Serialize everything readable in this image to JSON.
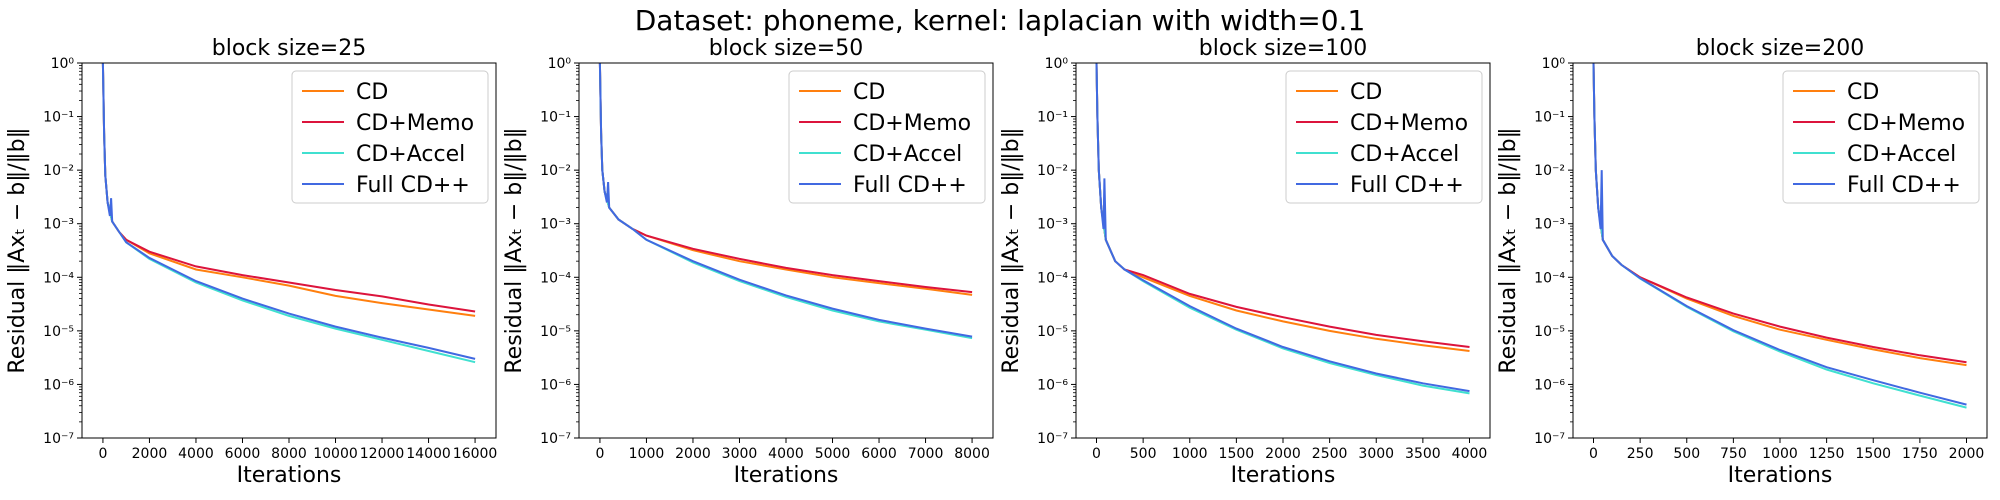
{
  "figure": {
    "title": "Dataset: phoneme, kernel: laplacian with width=0.1"
  },
  "chart_data": [
    {
      "type": "line",
      "title": "block size=25",
      "xlabel": "Iterations",
      "ylabel": "Residual ‖Axₜ − b‖/‖b‖",
      "yscale": "log",
      "ylim": [
        1e-07,
        1
      ],
      "xlim": [
        -900,
        16900
      ],
      "xticks": [
        0,
        2000,
        4000,
        6000,
        8000,
        10000,
        12000,
        14000,
        16000
      ],
      "yticks": [
        1e-07,
        1e-06,
        1e-05,
        0.0001,
        0.001,
        0.01,
        0.1,
        1
      ],
      "yticklabels": [
        "10⁻⁷",
        "10⁻⁶",
        "10⁻⁵",
        "10⁻⁴",
        "10⁻³",
        "10⁻²",
        "10⁻¹",
        "10⁰"
      ],
      "legend_position": "top-right",
      "grid": false,
      "series": [
        {
          "name": "CD",
          "color": "#ff7f0e",
          "x": [
            0,
            50,
            100,
            200,
            400,
            700,
            1000,
            2000,
            4000,
            6000,
            8000,
            10000,
            12000,
            14000,
            16000
          ],
          "y": [
            1,
            0.05,
            0.008,
            0.0025,
            0.0011,
            0.0007,
            0.0005,
            0.00028,
            0.00014,
            0.0001,
            7e-05,
            4.5e-05,
            3.3e-05,
            2.5e-05,
            1.9e-05
          ]
        },
        {
          "name": "CD+Memo",
          "color": "#dc143c",
          "x": [
            0,
            50,
            100,
            200,
            400,
            700,
            1000,
            2000,
            4000,
            6000,
            8000,
            10000,
            12000,
            14000,
            16000
          ],
          "y": [
            1,
            0.05,
            0.008,
            0.0025,
            0.0011,
            0.0007,
            0.0005,
            0.0003,
            0.00016,
            0.00011,
            8e-05,
            5.8e-05,
            4.4e-05,
            3.1e-05,
            2.3e-05
          ]
        },
        {
          "name": "CD+Accel",
          "color": "#40e0d0",
          "x": [
            0,
            50,
            100,
            200,
            400,
            700,
            1000,
            2000,
            4000,
            6000,
            8000,
            10000,
            12000,
            14000,
            16000
          ],
          "y": [
            1,
            0.05,
            0.008,
            0.0025,
            0.0011,
            0.0007,
            0.00045,
            0.00022,
            8e-05,
            3.7e-05,
            1.9e-05,
            1.1e-05,
            6.8e-06,
            4.2e-06,
            2.6e-06
          ]
        },
        {
          "name": "Full CD++",
          "color": "#4169e1",
          "x": [
            0,
            50,
            100,
            200,
            300,
            350,
            400,
            700,
            1000,
            2000,
            4000,
            6000,
            8000,
            10000,
            12000,
            14000,
            16000
          ],
          "y": [
            1,
            0.05,
            0.008,
            0.0025,
            0.0014,
            0.003,
            0.0011,
            0.0007,
            0.00045,
            0.00023,
            8.5e-05,
            4e-05,
            2.1e-05,
            1.2e-05,
            7.5e-06,
            4.8e-06,
            3e-06
          ]
        }
      ]
    },
    {
      "type": "line",
      "title": "block size=50",
      "xlabel": "Iterations",
      "ylabel": "Residual ‖Axₜ − b‖/‖b‖",
      "yscale": "log",
      "ylim": [
        1e-07,
        1
      ],
      "xlim": [
        -450,
        8450
      ],
      "xticks": [
        0,
        1000,
        2000,
        3000,
        4000,
        5000,
        6000,
        7000,
        8000
      ],
      "yticks": [
        1e-07,
        1e-06,
        1e-05,
        0.0001,
        0.001,
        0.01,
        0.1,
        1
      ],
      "yticklabels": [
        "10⁻⁷",
        "10⁻⁶",
        "10⁻⁵",
        "10⁻⁴",
        "10⁻³",
        "10⁻²",
        "10⁻¹",
        "10⁰"
      ],
      "legend_position": "top-right",
      "grid": false,
      "series": [
        {
          "name": "CD",
          "color": "#ff7f0e",
          "x": [
            0,
            25,
            50,
            100,
            200,
            400,
            700,
            1000,
            2000,
            3000,
            4000,
            5000,
            6000,
            7000,
            8000
          ],
          "y": [
            1,
            0.05,
            0.01,
            0.004,
            0.002,
            0.0012,
            0.0008,
            0.0006,
            0.00032,
            0.0002,
            0.00014,
            0.0001,
            7.8e-05,
            6.1e-05,
            4.7e-05
          ]
        },
        {
          "name": "CD+Memo",
          "color": "#dc143c",
          "x": [
            0,
            25,
            50,
            100,
            200,
            400,
            700,
            1000,
            2000,
            3000,
            4000,
            5000,
            6000,
            7000,
            8000
          ],
          "y": [
            1,
            0.05,
            0.01,
            0.004,
            0.002,
            0.0012,
            0.0008,
            0.0006,
            0.00034,
            0.00022,
            0.00015,
            0.00011,
            8.5e-05,
            6.6e-05,
            5.3e-05
          ]
        },
        {
          "name": "CD+Accel",
          "color": "#40e0d0",
          "x": [
            0,
            25,
            50,
            100,
            200,
            400,
            700,
            1000,
            2000,
            3000,
            4000,
            5000,
            6000,
            7000,
            8000
          ],
          "y": [
            1,
            0.05,
            0.01,
            0.004,
            0.002,
            0.0012,
            0.0008,
            0.0005,
            0.00019,
            8.5e-05,
            4.3e-05,
            2.4e-05,
            1.5e-05,
            1.05e-05,
            7.3e-06
          ]
        },
        {
          "name": "Full CD++",
          "color": "#4169e1",
          "x": [
            0,
            25,
            50,
            100,
            150,
            175,
            200,
            400,
            700,
            1000,
            2000,
            3000,
            4000,
            5000,
            6000,
            7000,
            8000
          ],
          "y": [
            1,
            0.05,
            0.01,
            0.004,
            0.0025,
            0.006,
            0.002,
            0.0012,
            0.0008,
            0.0005,
            0.0002,
            9e-05,
            4.6e-05,
            2.6e-05,
            1.6e-05,
            1.1e-05,
            7.8e-06
          ]
        }
      ]
    },
    {
      "type": "line",
      "title": "block size=100",
      "xlabel": "Iterations",
      "ylabel": "Residual ‖Axₜ − b‖/‖b‖",
      "yscale": "log",
      "ylim": [
        1e-07,
        1
      ],
      "xlim": [
        -220,
        4220
      ],
      "xticks": [
        0,
        500,
        1000,
        1500,
        2000,
        2500,
        3000,
        3500,
        4000
      ],
      "yticks": [
        1e-07,
        1e-06,
        1e-05,
        0.0001,
        0.001,
        0.01,
        0.1,
        1
      ],
      "yticklabels": [
        "10⁻⁷",
        "10⁻⁶",
        "10⁻⁵",
        "10⁻⁴",
        "10⁻³",
        "10⁻²",
        "10⁻¹",
        "10⁰"
      ],
      "legend_position": "top-right",
      "grid": false,
      "series": [
        {
          "name": "CD",
          "color": "#ff7f0e",
          "x": [
            0,
            10,
            25,
            50,
            100,
            200,
            300,
            500,
            1000,
            1500,
            2000,
            2500,
            3000,
            3500,
            4000
          ],
          "y": [
            1,
            0.1,
            0.01,
            0.002,
            0.0005,
            0.0002,
            0.00014,
            0.0001,
            4.5e-05,
            2.4e-05,
            1.5e-05,
            1e-05,
            7.1e-06,
            5.4e-06,
            4.2e-06
          ]
        },
        {
          "name": "CD+Memo",
          "color": "#dc143c",
          "x": [
            0,
            10,
            25,
            50,
            100,
            200,
            300,
            500,
            1000,
            1500,
            2000,
            2500,
            3000,
            3500,
            4000
          ],
          "y": [
            1,
            0.1,
            0.01,
            0.002,
            0.0005,
            0.0002,
            0.00014,
            0.00011,
            4.9e-05,
            2.8e-05,
            1.8e-05,
            1.2e-05,
            8.4e-06,
            6.4e-06,
            5e-06
          ]
        },
        {
          "name": "CD+Accel",
          "color": "#40e0d0",
          "x": [
            0,
            10,
            25,
            50,
            100,
            200,
            300,
            500,
            1000,
            1500,
            2000,
            2500,
            3000,
            3500,
            4000
          ],
          "y": [
            1,
            0.1,
            0.01,
            0.002,
            0.0005,
            0.0002,
            0.00014,
            8.5e-05,
            2.7e-05,
            1.05e-05,
            4.7e-06,
            2.5e-06,
            1.5e-06,
            9.5e-07,
            6.8e-07
          ]
        },
        {
          "name": "Full CD++",
          "color": "#4169e1",
          "x": [
            0,
            10,
            25,
            50,
            75,
            85,
            100,
            200,
            300,
            500,
            1000,
            1500,
            2000,
            2500,
            3000,
            3500,
            4000
          ],
          "y": [
            1,
            0.1,
            0.01,
            0.002,
            0.0008,
            0.007,
            0.0005,
            0.0002,
            0.00014,
            8.8e-05,
            2.9e-05,
            1.1e-05,
            5e-06,
            2.7e-06,
            1.6e-06,
            1.05e-06,
            7.5e-07
          ]
        }
      ]
    },
    {
      "type": "line",
      "title": "block size=200",
      "xlabel": "Iterations",
      "ylabel": "Residual ‖Axₜ − b‖/‖b‖",
      "yscale": "log",
      "ylim": [
        1e-07,
        1
      ],
      "xlim": [
        -110,
        2110
      ],
      "xticks": [
        0,
        250,
        500,
        750,
        1000,
        1250,
        1500,
        1750,
        2000
      ],
      "yticks": [
        1e-07,
        1e-06,
        1e-05,
        0.0001,
        0.001,
        0.01,
        0.1,
        1
      ],
      "yticklabels": [
        "10⁻⁷",
        "10⁻⁶",
        "10⁻⁵",
        "10⁻⁴",
        "10⁻³",
        "10⁻²",
        "10⁻¹",
        "10⁰"
      ],
      "legend_position": "top-right",
      "grid": false,
      "series": [
        {
          "name": "CD",
          "color": "#ff7f0e",
          "x": [
            0,
            5,
            12,
            25,
            50,
            100,
            150,
            250,
            500,
            750,
            1000,
            1250,
            1500,
            1750,
            2000
          ],
          "y": [
            1,
            0.1,
            0.01,
            0.002,
            0.0005,
            0.00025,
            0.00017,
            0.0001,
            4e-05,
            1.9e-05,
            1.05e-05,
            6.8e-06,
            4.5e-06,
            3.1e-06,
            2.3e-06
          ]
        },
        {
          "name": "CD+Memo",
          "color": "#dc143c",
          "x": [
            0,
            5,
            12,
            25,
            50,
            100,
            150,
            250,
            500,
            750,
            1000,
            1250,
            1500,
            1750,
            2000
          ],
          "y": [
            1,
            0.1,
            0.01,
            0.002,
            0.0005,
            0.00025,
            0.00017,
            0.0001,
            4.2e-05,
            2.1e-05,
            1.2e-05,
            7.5e-06,
            5e-06,
            3.5e-06,
            2.6e-06
          ]
        },
        {
          "name": "CD+Accel",
          "color": "#40e0d0",
          "x": [
            0,
            5,
            12,
            25,
            50,
            100,
            150,
            250,
            500,
            750,
            1000,
            1250,
            1500,
            1750,
            2000
          ],
          "y": [
            1,
            0.1,
            0.01,
            0.002,
            0.0005,
            0.00025,
            0.00017,
            9.5e-05,
            2.8e-05,
            9.8e-06,
            4.1e-06,
            1.9e-06,
            1.05e-06,
            6.2e-07,
            3.7e-07
          ]
        },
        {
          "name": "Full CD++",
          "color": "#4169e1",
          "x": [
            0,
            5,
            12,
            25,
            38,
            44,
            50,
            100,
            150,
            250,
            500,
            750,
            1000,
            1250,
            1500,
            1750,
            2000
          ],
          "y": [
            1,
            0.1,
            0.01,
            0.002,
            0.0008,
            0.01,
            0.0005,
            0.00025,
            0.00017,
            9.6e-05,
            2.9e-05,
            1.03e-05,
            4.4e-06,
            2.1e-06,
            1.2e-06,
            7e-07,
            4.2e-07
          ]
        }
      ]
    }
  ]
}
